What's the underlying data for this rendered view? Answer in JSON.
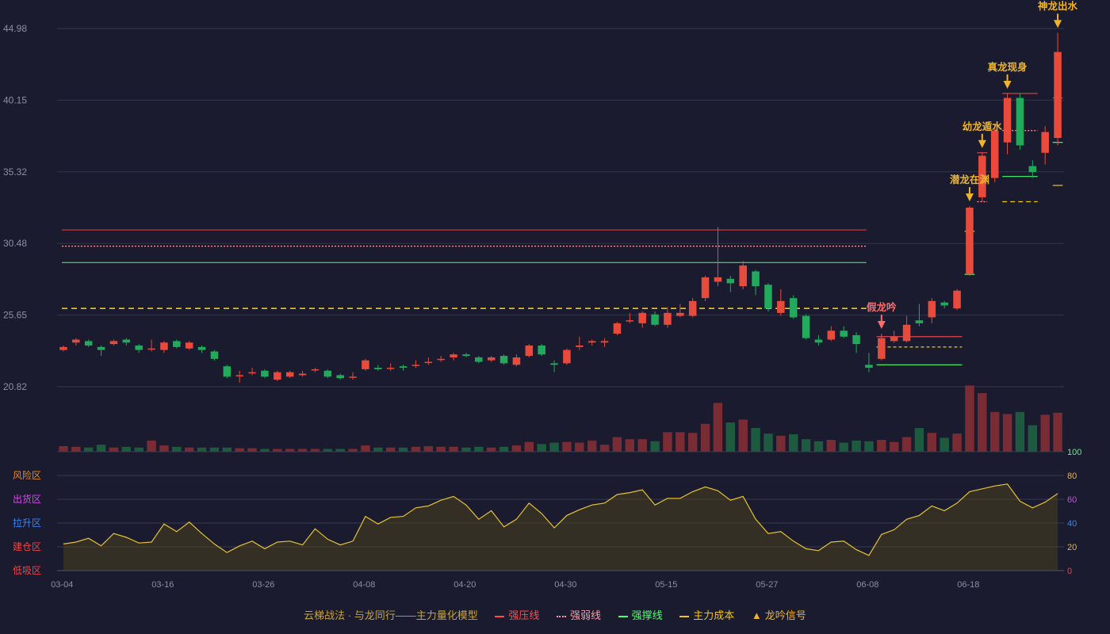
{
  "chart_data": {
    "type": "candlestick",
    "price_axis": {
      "ticks": [
        "44.98",
        "40.15",
        "35.32",
        "30.48",
        "25.65",
        "20.82"
      ],
      "range": [
        20.82,
        44.98
      ]
    },
    "date_ticks": [
      "03-04",
      "03-16",
      "03-26",
      "04-08",
      "04-20",
      "04-30",
      "05-15",
      "05-27",
      "06-08",
      "06-18"
    ],
    "candles": [
      [
        23.3,
        23.5,
        23.6,
        23.2
      ],
      [
        23.8,
        24.0,
        24.1,
        23.6
      ],
      [
        23.9,
        23.6,
        24.0,
        23.5
      ],
      [
        23.5,
        23.3,
        23.6,
        22.9
      ],
      [
        23.7,
        23.9,
        24.0,
        23.6
      ],
      [
        24.0,
        23.8,
        24.1,
        23.6
      ],
      [
        23.6,
        23.3,
        23.7,
        23.1
      ],
      [
        23.4,
        23.4,
        24.0,
        23.2
      ],
      [
        23.3,
        23.8,
        23.9,
        23.1
      ],
      [
        23.9,
        23.5,
        24.0,
        23.4
      ],
      [
        23.4,
        23.8,
        23.9,
        23.3
      ],
      [
        23.5,
        23.3,
        23.6,
        23.1
      ],
      [
        23.2,
        22.7,
        23.3,
        22.6
      ],
      [
        22.2,
        21.5,
        22.3,
        21.4
      ],
      [
        21.6,
        21.6,
        21.9,
        21.1
      ],
      [
        21.8,
        21.8,
        22.1,
        21.6
      ],
      [
        21.9,
        21.5,
        22.0,
        21.4
      ],
      [
        21.3,
        21.8,
        21.9,
        21.2
      ],
      [
        21.5,
        21.8,
        21.9,
        21.4
      ],
      [
        21.6,
        21.7,
        21.9,
        21.5
      ],
      [
        22.0,
        22.0,
        22.1,
        21.8
      ],
      [
        21.9,
        21.5,
        22.0,
        21.4
      ],
      [
        21.6,
        21.4,
        21.7,
        21.3
      ],
      [
        21.5,
        21.5,
        21.8,
        21.3
      ],
      [
        22.0,
        22.6,
        22.7,
        21.9
      ],
      [
        22.1,
        22.0,
        22.3,
        21.9
      ],
      [
        22.1,
        22.1,
        22.4,
        21.9
      ],
      [
        22.2,
        22.1,
        22.3,
        21.9
      ],
      [
        22.3,
        22.3,
        22.6,
        22.1
      ],
      [
        22.5,
        22.5,
        22.8,
        22.3
      ],
      [
        22.7,
        22.7,
        22.9,
        22.5
      ],
      [
        22.8,
        23.0,
        23.1,
        22.6
      ],
      [
        23.0,
        22.9,
        23.1,
        22.8
      ],
      [
        22.8,
        22.5,
        22.9,
        22.4
      ],
      [
        22.6,
        22.8,
        22.9,
        22.5
      ],
      [
        22.9,
        22.4,
        23.0,
        22.3
      ],
      [
        22.3,
        22.8,
        23.0,
        22.2
      ],
      [
        22.9,
        23.6,
        23.7,
        22.8
      ],
      [
        23.6,
        23.0,
        23.7,
        22.9
      ],
      [
        22.4,
        22.3,
        22.6,
        21.8
      ],
      [
        22.4,
        23.3,
        23.4,
        22.3
      ],
      [
        23.5,
        23.6,
        24.2,
        23.3
      ],
      [
        23.8,
        23.9,
        24.0,
        23.6
      ],
      [
        23.8,
        23.9,
        24.1,
        23.5
      ],
      [
        24.4,
        25.1,
        25.2,
        24.3
      ],
      [
        25.3,
        25.3,
        25.8,
        25.1
      ],
      [
        25.1,
        25.8,
        25.9,
        24.8
      ],
      [
        25.7,
        25.0,
        25.9,
        24.9
      ],
      [
        25.0,
        25.8,
        26.2,
        24.8
      ],
      [
        25.6,
        25.8,
        26.4,
        25.5
      ],
      [
        25.6,
        26.6,
        26.8,
        25.5
      ],
      [
        26.8,
        28.2,
        28.3,
        26.6
      ],
      [
        27.9,
        28.2,
        31.6,
        27.6
      ],
      [
        28.1,
        27.8,
        28.3,
        27.2
      ],
      [
        27.6,
        29.0,
        29.3,
        27.4
      ],
      [
        28.6,
        27.6,
        28.7,
        27.0
      ],
      [
        27.7,
        26.1,
        27.8,
        25.9
      ],
      [
        25.8,
        26.6,
        27.4,
        25.6
      ],
      [
        26.8,
        25.5,
        27.0,
        25.4
      ],
      [
        25.6,
        24.1,
        25.7,
        24.0
      ],
      [
        24.0,
        23.8,
        24.3,
        23.6
      ],
      [
        24.0,
        24.6,
        24.9,
        23.9
      ],
      [
        24.6,
        24.2,
        24.9,
        24.1
      ],
      [
        24.3,
        23.7,
        24.5,
        23.1
      ],
      [
        22.3,
        22.1,
        23.1,
        21.8
      ],
      [
        22.7,
        24.1,
        24.4,
        22.6
      ],
      [
        23.9,
        24.2,
        24.6,
        23.8
      ],
      [
        23.9,
        25.0,
        25.6,
        23.8
      ],
      [
        25.3,
        25.1,
        26.4,
        24.9
      ],
      [
        25.5,
        26.6,
        26.8,
        25.1
      ],
      [
        26.5,
        26.3,
        26.6,
        26.1
      ],
      [
        26.1,
        27.3,
        27.4,
        26.0
      ],
      [
        28.4,
        32.9,
        33.0,
        28.3
      ],
      [
        33.6,
        36.4,
        36.6,
        33.3
      ],
      [
        34.9,
        38.1,
        38.5,
        34.6
      ],
      [
        37.3,
        40.3,
        40.6,
        36.5
      ],
      [
        40.3,
        37.1,
        40.6,
        36.8
      ],
      [
        35.7,
        35.3,
        36.1,
        34.9
      ],
      [
        36.6,
        38.0,
        38.4,
        35.8
      ],
      [
        37.6,
        43.4,
        44.7,
        37.1
      ]
    ],
    "volume": [
      0.8,
      0.7,
      0.6,
      1.0,
      0.6,
      0.7,
      0.6,
      1.6,
      0.9,
      0.7,
      0.6,
      0.6,
      0.6,
      0.6,
      0.5,
      0.5,
      0.4,
      0.4,
      0.4,
      0.4,
      0.4,
      0.4,
      0.4,
      0.4,
      0.9,
      0.6,
      0.6,
      0.6,
      0.7,
      0.8,
      0.7,
      0.7,
      0.6,
      0.7,
      0.6,
      0.7,
      0.9,
      1.4,
      1.1,
      1.3,
      1.4,
      1.3,
      1.6,
      1.0,
      2.1,
      1.8,
      1.8,
      1.5,
      2.8,
      2.8,
      2.7,
      4.0,
      7.0,
      4.2,
      4.6,
      3.4,
      2.6,
      2.3,
      2.5,
      1.8,
      1.5,
      1.7,
      1.3,
      1.6,
      1.5,
      1.7,
      1.4,
      2.1,
      3.4,
      2.7,
      2.0,
      2.6,
      9.5,
      8.4,
      5.7,
      5.4,
      5.7,
      3.8,
      5.3,
      5.6
    ],
    "oscillator": {
      "values": [
        28,
        30,
        34,
        26,
        39,
        35,
        29,
        30,
        49,
        41,
        51,
        39,
        28,
        19,
        26,
        31,
        23,
        30,
        31,
        27,
        44,
        33,
        27,
        31,
        57,
        49,
        56,
        57,
        66,
        68,
        74,
        78,
        69,
        54,
        63,
        46,
        54,
        71,
        60,
        45,
        58,
        64,
        69,
        71,
        80,
        82,
        85,
        69,
        76,
        76,
        83,
        88,
        84,
        74,
        78,
        54,
        39,
        41,
        31,
        23,
        21,
        30,
        31,
        22,
        16,
        38,
        43,
        54,
        58,
        68,
        63,
        71,
        83,
        86,
        89,
        91,
        73,
        66,
        72,
        81
      ],
      "zones": [
        "风险区",
        "出货区",
        "拉升区",
        "建仓区",
        "低吸区"
      ],
      "ticks": [
        "100",
        "80",
        "60",
        "40",
        "20",
        "0"
      ],
      "range": [
        0,
        100
      ]
    },
    "levels": {
      "strong_resistance": 31.4,
      "weak_resistance": 30.3,
      "strong_support": 29.2,
      "main_cost": 26.1
    },
    "signals": [
      {
        "label": "假龙吟",
        "index": 65,
        "color": "#ff6b6b"
      },
      {
        "label": "潜龙在渊",
        "index": 72,
        "color": "#f0b429"
      },
      {
        "label": "幼龙遁水",
        "index": 73,
        "color": "#f0b429"
      },
      {
        "label": "真龙现身",
        "index": 75,
        "color": "#f0b429"
      },
      {
        "label": "神龙出水",
        "index": 79,
        "color": "#f0b429"
      }
    ],
    "legend": {
      "title": "云梯战法 · 与龙同行——主力量化模型",
      "items": [
        {
          "label": "强压线",
          "color": "#ff4d4f"
        },
        {
          "label": "强弱线",
          "color": "#ff9aa2"
        },
        {
          "label": "强撑线",
          "color": "#4cff6a"
        },
        {
          "label": "主力成本",
          "color": "#f0c419"
        },
        {
          "label": "龙吟信号",
          "color": "#f0b429"
        }
      ]
    },
    "colors": {
      "up": "#e84a3c",
      "down": "#22a95b",
      "background": "#1a1b2e",
      "oscillator_line": "#e6c230"
    }
  }
}
